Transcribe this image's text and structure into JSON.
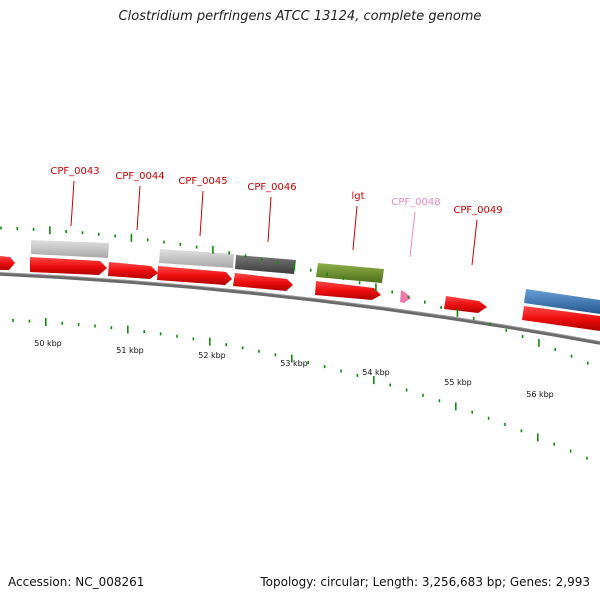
{
  "title": "Clostridium perfringens ATCC 13124, complete genome",
  "footer": {
    "accession_text": "Accession: NC_008261",
    "summary_text": "Topology: circular; Length: 3,256,683 bp; Genes: 2,993"
  },
  "colors": {
    "cds": "#ee1111",
    "label_default": "#cc0000",
    "label_faded": "#ee88bb",
    "tick": "#118811",
    "backbone": "#666666",
    "gene_light_gray": "#c4c4c4",
    "gene_dark_gray": "#5a5a5a",
    "gene_green": "#6b8f2a",
    "gene_blue": "#3a7ab8"
  },
  "gene_labels": [
    {
      "label": "CPF_0043",
      "color_key": "label_default"
    },
    {
      "label": "CPF_0044",
      "color_key": "label_default"
    },
    {
      "label": "CPF_0045",
      "color_key": "label_default"
    },
    {
      "label": "CPF_0046",
      "color_key": "label_default"
    },
    {
      "label": "lgt",
      "color_key": "label_default"
    },
    {
      "label": "CPF_0048",
      "color_key": "label_faded"
    },
    {
      "label": "CPF_0049",
      "color_key": "label_default"
    }
  ],
  "kbp_labels": [
    "50 kbp",
    "51 kbp",
    "52 kbp",
    "53 kbp",
    "54 kbp",
    "55 kbp",
    "56 kbp"
  ]
}
